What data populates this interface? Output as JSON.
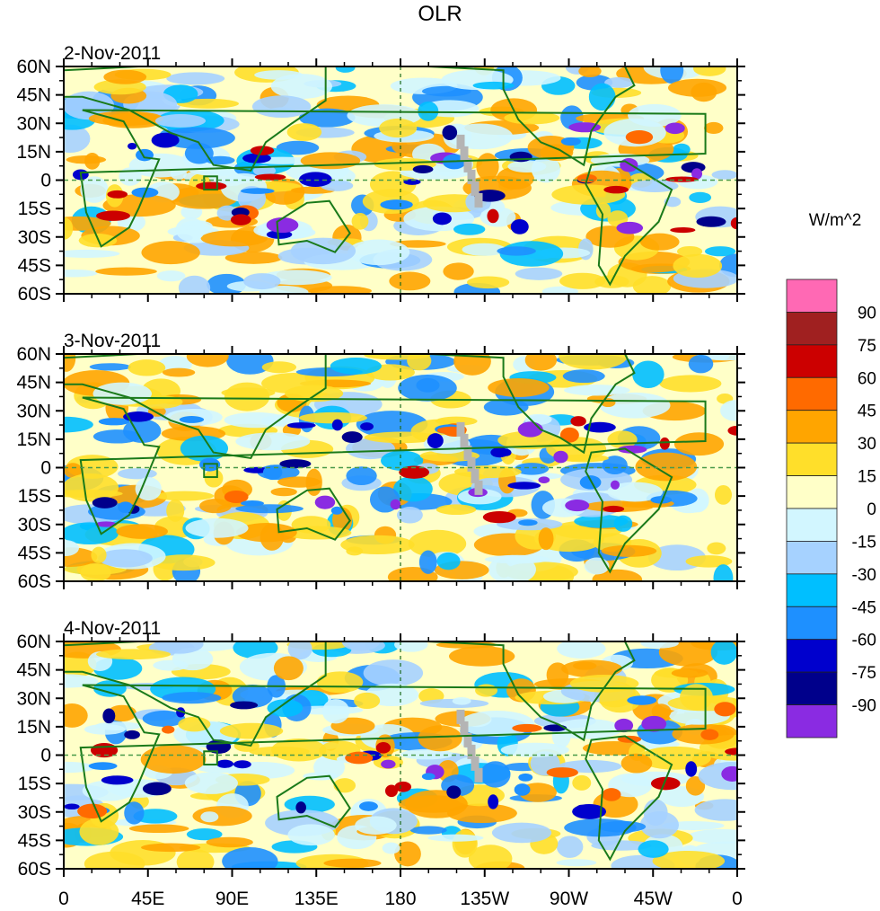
{
  "chart_data": {
    "type": "heatmap",
    "title": "OLR",
    "units_label": "W/m^2",
    "panels": [
      {
        "title": "2-Nov-2011"
      },
      {
        "title": "3-Nov-2011"
      },
      {
        "title": "4-Nov-2011"
      }
    ],
    "y_ticks": [
      "60N",
      "45N",
      "30N",
      "15N",
      "0",
      "15S",
      "30S",
      "45S",
      "60S"
    ],
    "y_range_deg": [
      -60,
      60
    ],
    "x_ticks": [
      "0",
      "45E",
      "90E",
      "135E",
      "180",
      "135W",
      "90W",
      "45W",
      "0"
    ],
    "x_range_deg": [
      0,
      360
    ],
    "reference_lines": [
      "equator (0)",
      "dateline (180)"
    ],
    "colorbar": {
      "levels": [
        "90",
        "75",
        "60",
        "45",
        "30",
        "15",
        "0",
        "-15",
        "-30",
        "-45",
        "-60",
        "-75",
        "-90"
      ],
      "colors": [
        "#ff69b4",
        "#a02020",
        "#cc0000",
        "#ff6a00",
        "#ffa500",
        "#ffdf2a",
        "#ffffc8",
        "#d2f6ff",
        "#a6d2ff",
        "#00bfff",
        "#1e90ff",
        "#0000cd",
        "#00008b",
        "#8a2be2"
      ],
      "placement": "right"
    },
    "features": {
      "coastline_color": "#1a7a1a",
      "missing_data_color": "#b4b4b4"
    }
  }
}
